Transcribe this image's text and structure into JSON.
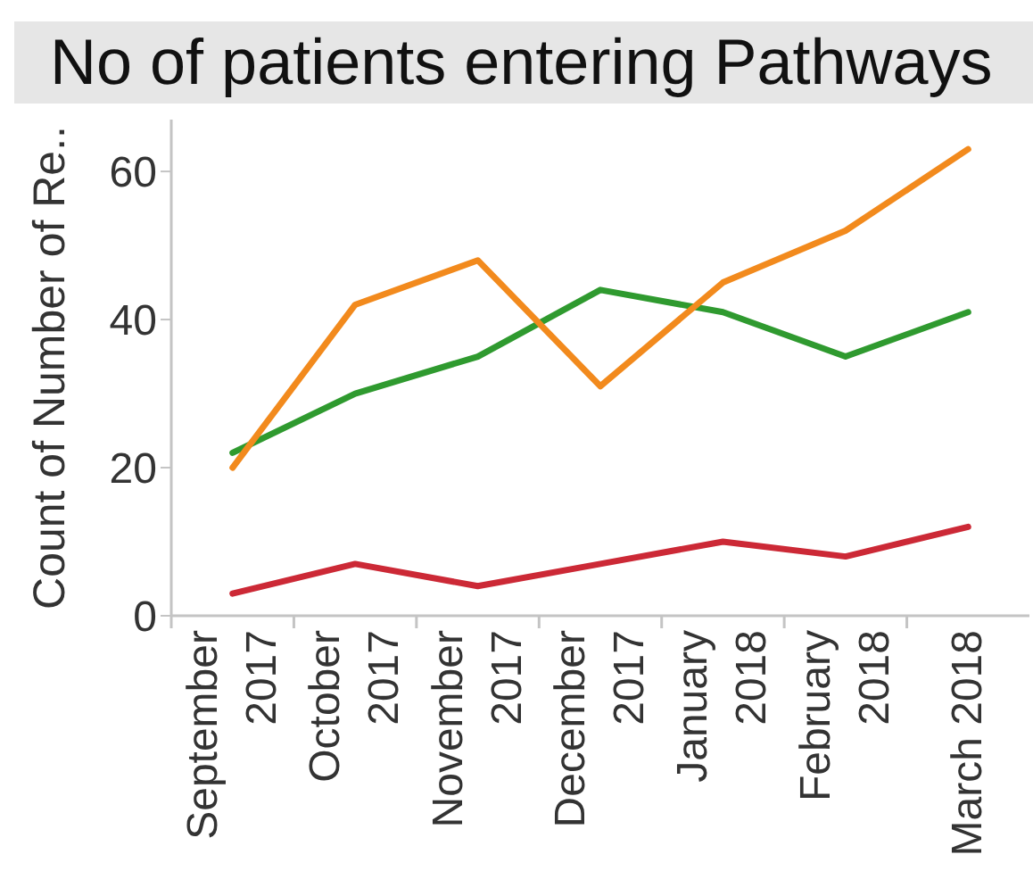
{
  "chart_data": {
    "type": "line",
    "title": "No of patients entering Pathways",
    "ylabel": "Count of Number of Re..",
    "categories": [
      "September 2017",
      "October 2017",
      "November 2017",
      "December 2017",
      "January 2018",
      "February 2018",
      "March 2018"
    ],
    "series": [
      {
        "color": "#2f9a2f",
        "values": [
          22,
          30,
          35,
          44,
          41,
          35,
          41
        ]
      },
      {
        "color": "#f28a1d",
        "values": [
          20,
          42,
          48,
          31,
          45,
          52,
          63
        ]
      },
      {
        "color": "#cc2936",
        "values": [
          3,
          7,
          4,
          7,
          10,
          8,
          12
        ]
      }
    ],
    "ylim": [
      0,
      67
    ],
    "yticks": [
      0,
      20,
      40,
      60
    ],
    "marker": "none",
    "line_style": "solid"
  }
}
